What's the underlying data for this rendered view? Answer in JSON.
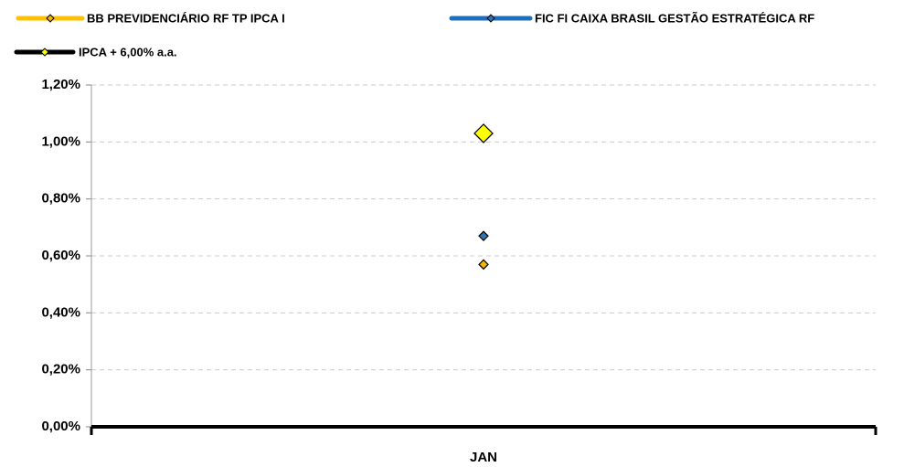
{
  "chart_data": {
    "type": "line",
    "categories": [
      "JAN"
    ],
    "series": [
      {
        "name": "BB PREVIDENCIÁRIO RF TP IPCA I",
        "color": "#FFC000",
        "marker_color": "#F5B400",
        "values": [
          0.57
        ]
      },
      {
        "name": "FIC FI CAIXA BRASIL GESTÃO ESTRATÉGICA RF",
        "color": "#1F6FBF",
        "marker_color": "#2E75B6",
        "values": [
          0.67
        ]
      },
      {
        "name": "IPCA + 6,00% a.a.",
        "color": "#000000",
        "marker_color": "#FFFF00",
        "values": [
          1.03
        ]
      }
    ],
    "ylim": [
      0,
      1.2
    ],
    "yticks": [
      {
        "value": 0,
        "label": "0,00%"
      },
      {
        "value": 0.2,
        "label": "0,20%"
      },
      {
        "value": 0.4,
        "label": "0,40%"
      },
      {
        "value": 0.6,
        "label": "0,60%"
      },
      {
        "value": 0.8,
        "label": "0,80%"
      },
      {
        "value": 1.0,
        "label": "1,00%"
      },
      {
        "value": 1.2,
        "label": "1,20%"
      }
    ],
    "grid": true
  }
}
